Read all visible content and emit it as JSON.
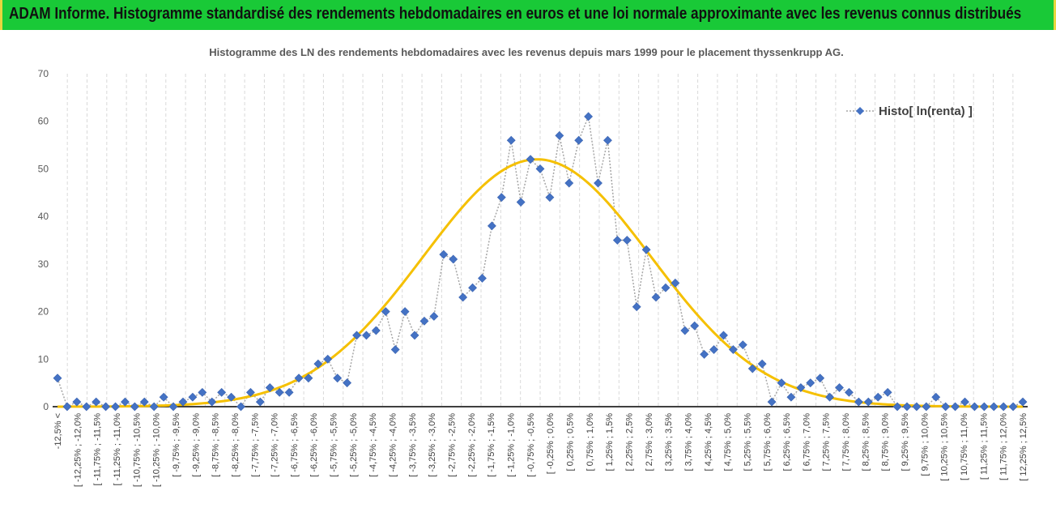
{
  "banner": {
    "title": "ADAM Informe. Histogramme standardisé des rendements hebdomadaires en euros et une loi normale approximante avec les revenus connus distribués"
  },
  "colors": {
    "banner_bg": "#19c937",
    "banner_border": "#e7d63f",
    "series": "#4472c4",
    "series_line": "#a6a6a6",
    "normal_curve": "#f5c000",
    "grid": "#d9d9d9"
  },
  "chart_data": {
    "type": "line",
    "title": "Histogramme des LN des rendements hebdomadaires avec les revenus depuis mars 1999 pour le placement thyssenkrupp AG.",
    "xlabel": "",
    "ylabel": "",
    "ylim": [
      0,
      70
    ],
    "yticks": [
      0,
      10,
      20,
      30,
      40,
      50,
      60,
      70
    ],
    "grid": "vertical dashed",
    "legend_position": "top-right",
    "categories": [
      "-12,5% <",
      "[ -12,25% ; -12,0%",
      "[ -11,75% ; -11,5%",
      "[ -11,25% ; -11,0%",
      "[ -10,75% ; -10,5%",
      "[ -10,25% ; -10,0%",
      "[ -9,75% ; -9,5%",
      "[ -9,25% ; -9,0%",
      "[ -8,75% ; -8,5%",
      "[ -8,25% ; -8,0%",
      "[ -7,75% ; -7,5%",
      "[ -7,25% ; -7,0%",
      "[ -6,75% ; -6,5%",
      "[ -6,25% ; -6,0%",
      "[ -5,75% ; -5,5%",
      "[ -5,25% ; -5,0%",
      "[ -4,75% ; -4,5%",
      "[ -4,25% ; -4,0%",
      "[ -3,75% ; -3,5%",
      "[ -3,25% ; -3,0%",
      "[ -2,75% ; -2,5%",
      "[ -2,25% ; -2,0%",
      "[ -1,75% ; -1,5%",
      "[ -1,25% ; -1,0%",
      "[ -0,75% ; -0,5%",
      "[ -0,25% ; 0,0%",
      "[ 0,25% ; 0,5%",
      "[ 0,75% ; 1,0%",
      "[ 1,25% ; 1,5%",
      "[ 2,25% ; 2,5%",
      "[ 2,75% ; 3,0%",
      "[ 3,25% ; 3,5%",
      "[ 3,75% ; 4,0%",
      "[ 4,25% ; 4,5%",
      "[ 4,75% ; 5,0%",
      "[ 5,25% ; 5,5%",
      "[ 5,75% ; 6,0%",
      "[ 6,25% ; 6,5%",
      "[ 6,75% ; 7,0%",
      "[ 7,25% ; 7,5%",
      "[ 7,75% ; 8,0%",
      "[ 8,25% ; 8,5%",
      "[ 8,75% ; 9,0%",
      "[ 9,25% ; 9,5%",
      "[ 9,75% ; 10,0%",
      "[ 10,25% ; 10,5%",
      "[ 10,75% ; 11,0%",
      "[ 11,25% ; 11,5%",
      "[ 11,75% ; 12,0%",
      "[ 12,25% ; 12,5%"
    ],
    "series": [
      {
        "name": "Histo[ ln(renta) ]",
        "marker": "diamond",
        "x": [
          -12.5,
          -12.25,
          -12.0,
          -11.75,
          -11.5,
          -11.25,
          -11.0,
          -10.75,
          -10.5,
          -10.25,
          -10.0,
          -9.75,
          -9.5,
          -9.25,
          -9.0,
          -8.75,
          -8.5,
          -8.25,
          -8.0,
          -7.75,
          -7.5,
          -7.25,
          -7.0,
          -6.75,
          -6.5,
          -6.25,
          -6.0,
          -5.75,
          -5.5,
          -5.25,
          -5.0,
          -4.75,
          -4.5,
          -4.25,
          -4.0,
          -3.75,
          -3.5,
          -3.25,
          -3.0,
          -2.75,
          -2.5,
          -2.25,
          -2.0,
          -1.75,
          -1.5,
          -1.25,
          -1.0,
          -0.75,
          -0.5,
          -0.25,
          0.0,
          0.25,
          0.5,
          0.75,
          1.0,
          1.25,
          1.5,
          1.75,
          2.0,
          2.25,
          2.5,
          2.75,
          3.0,
          3.25,
          3.5,
          3.75,
          4.0,
          4.25,
          4.5,
          4.75,
          5.0,
          5.25,
          5.5,
          5.75,
          6.0,
          6.25,
          6.5,
          6.75,
          7.0,
          7.25,
          7.5,
          7.75,
          8.0,
          8.25,
          8.5,
          8.75,
          9.0,
          9.25,
          9.5,
          9.75,
          10.0,
          10.25,
          10.5,
          10.75,
          11.0,
          11.25,
          11.5,
          11.75,
          12.0,
          12.25,
          12.5
        ],
        "values": [
          6,
          0,
          1,
          0,
          1,
          0,
          0,
          1,
          0,
          1,
          0,
          2,
          0,
          1,
          2,
          3,
          1,
          3,
          2,
          0,
          3,
          1,
          4,
          3,
          3,
          6,
          6,
          9,
          10,
          6,
          5,
          15,
          15,
          16,
          20,
          12,
          20,
          15,
          18,
          19,
          32,
          31,
          23,
          25,
          27,
          38,
          44,
          56,
          43,
          52,
          50,
          44,
          57,
          47,
          56,
          61,
          47,
          56,
          35,
          35,
          21,
          33,
          23,
          25,
          26,
          16,
          17,
          11,
          12,
          15,
          12,
          13,
          8,
          9,
          1,
          5,
          2,
          4,
          5,
          6,
          2,
          4,
          3,
          1,
          1,
          2,
          3,
          0,
          0,
          0,
          0,
          2,
          0,
          0,
          1,
          0,
          0,
          0,
          0,
          0,
          1
        ]
      },
      {
        "name": "",
        "type": "normal-curve",
        "mean": -0.08,
        "sd": 2.95,
        "peak": 52
      }
    ]
  }
}
